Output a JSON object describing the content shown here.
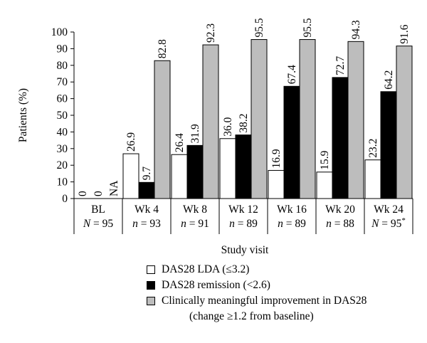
{
  "chart_data": {
    "type": "bar",
    "ylabel": "Patients (%)",
    "xlabel": "Study visit",
    "ylim": [
      0,
      100
    ],
    "yticks": [
      0,
      10,
      20,
      30,
      40,
      50,
      60,
      70,
      80,
      90,
      100
    ],
    "categories": [
      "BL",
      "Wk 4",
      "Wk 8",
      "Wk 12",
      "Wk 16",
      "Wk 20",
      "Wk 24"
    ],
    "category_n": [
      "N = 95",
      "n = 93",
      "n = 91",
      "n = 89",
      "n = 89",
      "n = 88",
      "N = 95*"
    ],
    "series": [
      {
        "name": "DAS28 LDA (≤3.2)",
        "color": "#ffffff",
        "values": [
          0,
          26.9,
          26.4,
          36.0,
          16.9,
          15.9,
          23.2
        ],
        "labels": [
          "0",
          "26.9",
          "26.4",
          "36.0",
          "16.9",
          "15.9",
          "23.2"
        ]
      },
      {
        "name": "DAS28 remission (<2.6)",
        "color": "#000000",
        "values": [
          0,
          9.7,
          31.9,
          38.2,
          67.4,
          72.7,
          64.2
        ],
        "labels": [
          "0",
          "9.7",
          "31.9",
          "38.2",
          "67.4",
          "72.7",
          "64.2"
        ]
      },
      {
        "name": "Clinically meaningful improvement in DAS28",
        "name_line2": "(change ≥1.2 from baseline)",
        "color": "#bdbdbd",
        "values": [
          null,
          82.8,
          92.3,
          95.5,
          95.5,
          94.3,
          91.6
        ],
        "labels": [
          "NA",
          "82.8",
          "92.3",
          "95.5",
          "95.5",
          "94.3",
          "91.6"
        ]
      }
    ],
    "grid": false,
    "legend_position": "bottom"
  }
}
